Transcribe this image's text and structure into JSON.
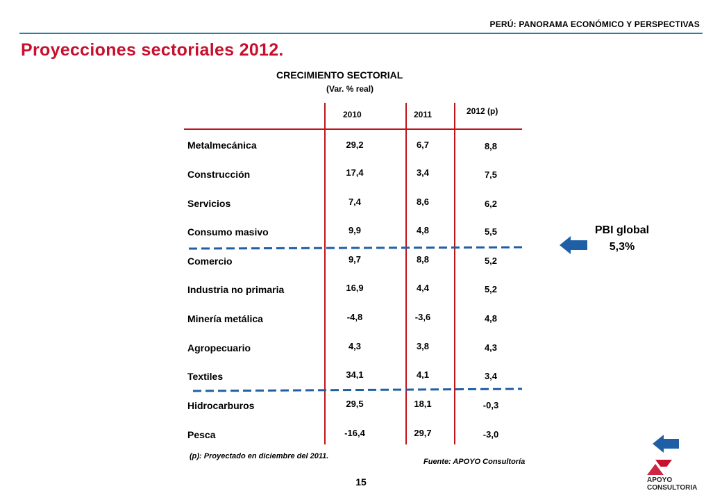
{
  "header": {
    "title": "PERÚ: PANORAMA ECONÓMICO Y PERSPECTIVAS"
  },
  "page": {
    "title": "Proyecciones sectoriales 2012.",
    "number": "15"
  },
  "table": {
    "title": "CRECIMIENTO SECTORIAL",
    "subtitle": "(Var. % real)",
    "columns": [
      "2010",
      "2011",
      "2012 (p)"
    ],
    "rows": [
      {
        "sector": "Metalmecánica",
        "v2010": "29,2",
        "v2011": "6,7",
        "v2012": "8,8"
      },
      {
        "sector": "Construcción",
        "v2010": "17,4",
        "v2011": "3,4",
        "v2012": "7,5"
      },
      {
        "sector": "Servicios",
        "v2010": "7,4",
        "v2011": "8,6",
        "v2012": "6,2"
      },
      {
        "sector": "Consumo masivo",
        "v2010": "9,9",
        "v2011": "4,8",
        "v2012": "5,5"
      },
      {
        "sector": "Comercio",
        "v2010": "9,7",
        "v2011": "8,8",
        "v2012": "5,2"
      },
      {
        "sector": "Industria no primaria",
        "v2010": "16,9",
        "v2011": "4,4",
        "v2012": "5,2"
      },
      {
        "sector": "Minería metálica",
        "v2010": "-4,8",
        "v2011": "-3,6",
        "v2012": "4,8"
      },
      {
        "sector": "Agropecuario",
        "v2010": "4,3",
        "v2011": "3,8",
        "v2012": "4,3"
      },
      {
        "sector": "Textiles",
        "v2010": "34,1",
        "v2011": "4,1",
        "v2012": "3,4"
      },
      {
        "sector": "Hidrocarburos",
        "v2010": "29,5",
        "v2011": "18,1",
        "v2012": "-0,3"
      },
      {
        "sector": "Pesca",
        "v2010": "-16,4",
        "v2011": "29,7",
        "v2012": "-3,0"
      }
    ]
  },
  "pbi": {
    "label": "PBI global",
    "value": "5,3%"
  },
  "notes": {
    "projection": "(p): Proyectado en diciembre del 2011.",
    "source": "Fuente: APOYO Consultoría"
  },
  "logo": {
    "line1": "APOYO",
    "line2": "CONSULTORIA"
  },
  "colors": {
    "title_red": "#c8102e",
    "rule_blue": "#2a7fa8",
    "grid_red": "#c0141b",
    "dash_blue": "#1f5fa6",
    "arrow_blue": "#1f5fa6"
  }
}
